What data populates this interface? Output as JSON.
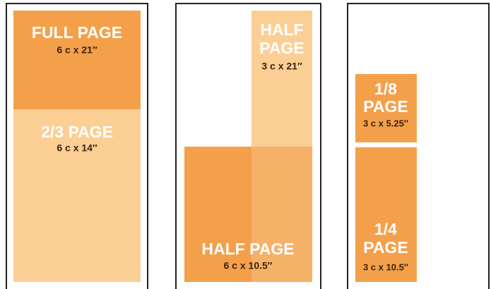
{
  "panels": [
    {
      "ads": [
        {
          "label": [
            "FULL PAGE"
          ],
          "size": "6 c x 21″"
        },
        {
          "label": [
            "2/3 PAGE"
          ],
          "size": "6 c x 14″"
        }
      ]
    },
    {
      "ads": [
        {
          "label": [
            "HALF",
            "PAGE"
          ],
          "size": "3 c x 21″"
        },
        {
          "label": [
            "HALF PAGE"
          ],
          "size": "6 c x 10.5″"
        }
      ]
    },
    {
      "ads": [
        {
          "label": [
            "1/8",
            "PAGE"
          ],
          "size": "3 c x 5.25″"
        },
        {
          "label": [
            "1/4",
            "PAGE"
          ],
          "size": "3 c x 10.5″"
        }
      ]
    }
  ]
}
